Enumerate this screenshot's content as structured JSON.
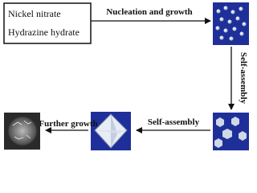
{
  "box": {
    "lines": [
      "Nickel nitrate",
      "Hydrazine hydrate"
    ]
  },
  "arrows": [
    {
      "label": "Nucleation and growth"
    },
    {
      "label": "Self-assembly"
    },
    {
      "label": "Self-assembly"
    },
    {
      "label": "Further growth"
    }
  ]
}
